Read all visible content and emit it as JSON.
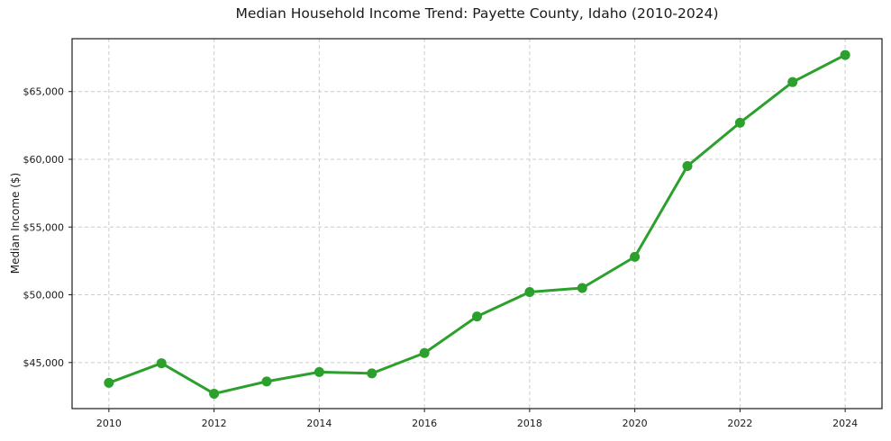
{
  "chart_data": {
    "type": "line",
    "title": "Median Household Income Trend: Payette County, Idaho (2010-2024)",
    "xlabel": "",
    "ylabel": "Median Income ($)",
    "x": [
      2010,
      2011,
      2012,
      2013,
      2014,
      2015,
      2016,
      2017,
      2018,
      2019,
      2020,
      2021,
      2022,
      2023,
      2024
    ],
    "values": [
      43500,
      44950,
      42700,
      43600,
      44300,
      44200,
      45700,
      48400,
      50200,
      50500,
      52800,
      59500,
      62700,
      65700,
      67700
    ],
    "series_name": "Median Household Income",
    "xlim": [
      2009.3,
      2024.7
    ],
    "ylim": [
      41600,
      68900
    ],
    "xticks": {
      "values": [
        2010,
        2012,
        2014,
        2016,
        2018,
        2020,
        2022,
        2024
      ],
      "labels": [
        "2010",
        "2012",
        "2014",
        "2016",
        "2018",
        "2020",
        "2022",
        "2024"
      ]
    },
    "yticks": {
      "values": [
        45000,
        50000,
        55000,
        60000,
        65000
      ],
      "labels": [
        "$45,000",
        "$50,000",
        "$55,000",
        "$60,000",
        "$65,000"
      ]
    },
    "grid": true,
    "legend": "none",
    "line_color": "#2ca02c",
    "marker_color": "#2ca02c",
    "grid_color": "#cccccc",
    "axis_color": "#1a1a1a",
    "tick_label_color": "#1a1a1a",
    "background": "#ffffff",
    "line_width": 3,
    "marker_radius": 5.5
  }
}
